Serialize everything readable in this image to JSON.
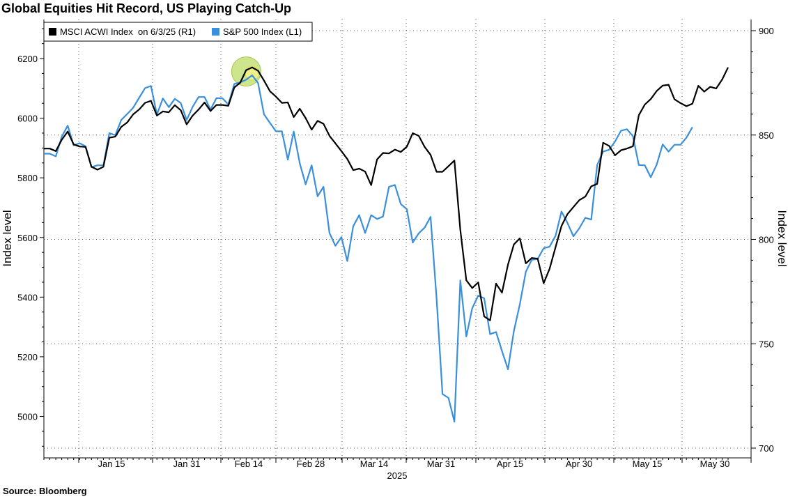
{
  "title": "Global Equities Hit Record, US Playing Catch-Up",
  "source": "Source: Bloomberg",
  "chart_data": {
    "type": "line",
    "title": "Global Equities Hit Record, US Playing Catch-Up",
    "xlabel": "2025",
    "ylabel_left": "Index level",
    "ylabel_right": "Index level",
    "left_axis": {
      "range": [
        4880,
        6330
      ],
      "ticks": [
        5000,
        5200,
        5400,
        5600,
        5800,
        6000,
        6200
      ]
    },
    "right_axis": {
      "range": [
        697,
        910
      ],
      "ticks": [
        700,
        750,
        800,
        850,
        900
      ]
    },
    "x_tick_labels": [
      "Jan 15",
      "Jan 31",
      "Feb 14",
      "Feb 28",
      "Mar 14",
      "Mar 31",
      "Apr 15",
      "Apr 30",
      "May 15",
      "May 30"
    ],
    "grid": true,
    "legend": {
      "placement": "top-left"
    },
    "annotations": [
      {
        "shape": "circle",
        "color": "#c4e27a",
        "series": "MSCI ACWI Index  on 6/3/25 (R1)",
        "index": 34
      },
      {
        "shape": "circle",
        "color": "#f2f28a",
        "series": "S&P 500 Index (L1)",
        "index": 35
      }
    ],
    "series": [
      {
        "name": "MSCI ACWI Index  on 6/3/25 (R1)",
        "axis": "right",
        "color": "#000000",
        "values": [
          843.5,
          843.5,
          842.3,
          847.7,
          851.7,
          845.5,
          844.5,
          844.3,
          834.8,
          833.4,
          834.8,
          848.7,
          849.2,
          853.9,
          856.0,
          859.9,
          862.2,
          865.4,
          866.4,
          859.3,
          861.3,
          860.9,
          864.3,
          861.9,
          855.1,
          859.3,
          862.2,
          865.6,
          861.5,
          864.4,
          864.4,
          864.0,
          872.8,
          875.1,
          881.1,
          882.4,
          880.8,
          876.1,
          871.0,
          868.4,
          865.4,
          865.6,
          858.6,
          862.6,
          858.1,
          852.6,
          856.8,
          855.4,
          849.6,
          846.0,
          842.3,
          838.5,
          833.2,
          833.9,
          832.5,
          826.0,
          838.3,
          841.4,
          841.2,
          843.0,
          841.9,
          844.4,
          850.9,
          849.6,
          844.3,
          840.5,
          832.4,
          832.4,
          835.1,
          837.8,
          804.5,
          780.4,
          776.7,
          779.4,
          763.1,
          761.2,
          778.8,
          774.5,
          787.9,
          797.6,
          800.5,
          788.5,
          791.1,
          790.8,
          779.0,
          785.9,
          796.3,
          806.4,
          812.1,
          815.5,
          818.8,
          820.5,
          825.4,
          826.6,
          846.3,
          844.8,
          840.3,
          842.7,
          843.5,
          844.6,
          859.5,
          864.6,
          867.2,
          871.1,
          873.7,
          874.1,
          867.1,
          865.3,
          863.8,
          865.0,
          873.6,
          870.8,
          873.1,
          872.3,
          876.6,
          882.4
        ]
      },
      {
        "name": "S&P 500 Index (L1)",
        "axis": "left",
        "color": "#3a8fdc",
        "values": [
          5881,
          5881,
          5872,
          5938,
          5975,
          5909,
          5916,
          5906,
          5836,
          5842,
          5842,
          5950,
          5943,
          5994,
          6014,
          6035,
          6068,
          6101,
          6108,
          6012,
          6066,
          6037,
          6065,
          6051,
          5994,
          6038,
          6071,
          6071,
          6029,
          6067,
          6067,
          6046,
          6115,
          6120,
          6129,
          6144,
          6118,
          6013,
          5984,
          5956,
          5956,
          5861,
          5955,
          5849,
          5778,
          5842,
          5738,
          5770,
          5615,
          5572,
          5601,
          5521,
          5638,
          5675,
          5615,
          5675,
          5662,
          5670,
          5770,
          5776,
          5712,
          5695,
          5583,
          5614,
          5633,
          5669,
          5396,
          5075,
          5062,
          4982,
          5456,
          5268,
          5363,
          5405,
          5396,
          5276,
          5283,
          5219,
          5158,
          5287,
          5376,
          5485,
          5525,
          5528,
          5564,
          5569,
          5606,
          5687,
          5649,
          5604,
          5631,
          5666,
          5660,
          5843,
          5888,
          5894,
          5922,
          5958,
          5963,
          5940,
          5843,
          5842,
          5802,
          5844,
          5912,
          5888,
          5911,
          5911,
          5935,
          5970
        ]
      }
    ]
  },
  "legend": {
    "msci_label": "MSCI ACWI Index  on 6/3/25 (R1)",
    "spx_label": "S&P 500 Index (L1)"
  },
  "colors": {
    "msci": "#000000",
    "spx": "#3a8fdc",
    "grid": "#555555"
  }
}
